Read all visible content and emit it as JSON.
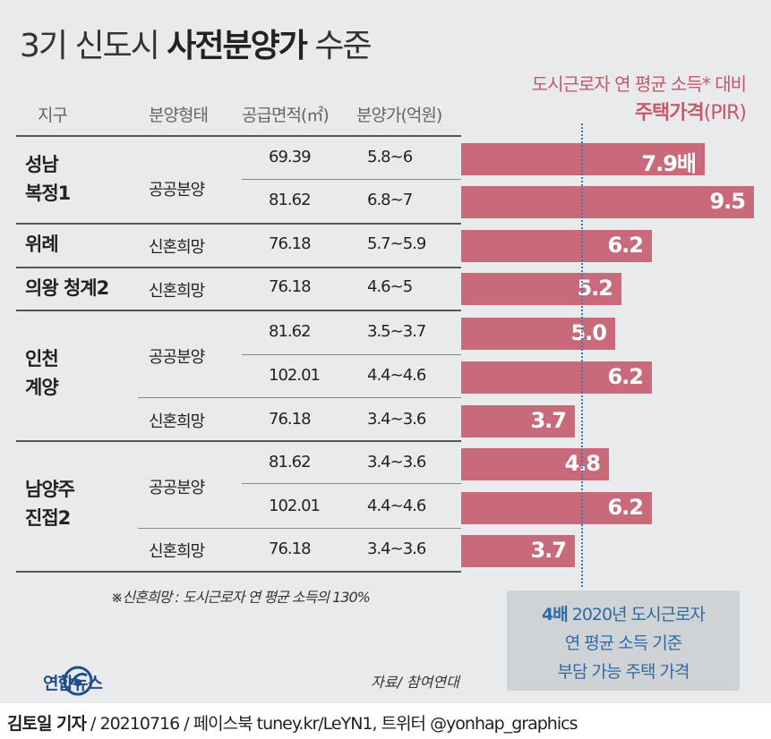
{
  "title_light_1": "3기 신도시 ",
  "title_bold": "사전분양가",
  "title_light_2": " 수준",
  "pir_header": {
    "line1": "도시근로자 연 평균 소득* 대비",
    "line2_bold": "주택가격",
    "line2_suffix": "(PIR)"
  },
  "table_headers": {
    "district": "지구",
    "type": "분양형태",
    "area": "공급면적(㎡)",
    "price": "분양가(억원)"
  },
  "groups": [
    {
      "region_line1": "성남",
      "region_line2": "복정1"
    },
    {
      "region_line1": "위례",
      "region_line2": ""
    },
    {
      "region_line1": "의왕 청계2",
      "region_line2": ""
    },
    {
      "region_line1": "인천",
      "region_line2": "계양"
    },
    {
      "region_line1": "남양주",
      "region_line2": "진접2"
    }
  ],
  "type_labels": {
    "public": "공공분양",
    "newlywed": "신혼희망"
  },
  "chart_data": {
    "type": "bar",
    "title": "3기 신도시 사전분양가 수준",
    "orientation": "horizontal",
    "value_unit_first": "배",
    "rows": [
      {
        "region": "성남 복정1",
        "type": "공공분양",
        "area": "69.39",
        "price": "5.8~6",
        "pir": 7.9,
        "pir_label": "7.9배"
      },
      {
        "region": "성남 복정1",
        "type": "공공분양",
        "area": "81.62",
        "price": "6.8~7",
        "pir": 9.5,
        "pir_label": "9.5"
      },
      {
        "region": "위례",
        "type": "신혼희망",
        "area": "76.18",
        "price": "5.7~5.9",
        "pir": 6.2,
        "pir_label": "6.2"
      },
      {
        "region": "의왕 청계2",
        "type": "신혼희망",
        "area": "76.18",
        "price": "4.6~5",
        "pir": 5.2,
        "pir_label": "5.2"
      },
      {
        "region": "인천 계양",
        "type": "공공분양",
        "area": "81.62",
        "price": "3.5~3.7",
        "pir": 5.0,
        "pir_label": "5.0"
      },
      {
        "region": "인천 계양",
        "type": "공공분양",
        "area": "102.01",
        "price": "4.4~4.6",
        "pir": 6.2,
        "pir_label": "6.2"
      },
      {
        "region": "인천 계양",
        "type": "신혼희망",
        "area": "76.18",
        "price": "3.4~3.6",
        "pir": 3.7,
        "pir_label": "3.7"
      },
      {
        "region": "남양주 진접2",
        "type": "공공분양",
        "area": "81.62",
        "price": "3.4~3.6",
        "pir": 4.8,
        "pir_label": "4.8"
      },
      {
        "region": "남양주 진접2",
        "type": "공공분양",
        "area": "102.01",
        "price": "4.4~4.6",
        "pir": 6.2,
        "pir_label": "6.2"
      },
      {
        "region": "남양주 진접2",
        "type": "신혼희망",
        "area": "76.18",
        "price": "3.4~3.6",
        "pir": 3.7,
        "pir_label": "3.7"
      }
    ],
    "reference": {
      "value": 4,
      "label_bold": "4배",
      "line1": " 2020년 도시근로자",
      "line2": "연 평균 소득 기준",
      "line3": "부담 가능 주택 가격"
    }
  },
  "footnote": "※신혼희망 : 도시근로자 연 평균 소득의 130%",
  "source": "자료/ 참여연대",
  "logo_text": "연합뉴스",
  "credit": {
    "bold": "김토일 기자",
    "rest": " / 20210716 / 페이스북 tuney.kr/LeYN1, 트위터 @yonhap_graphics"
  },
  "colors": {
    "bar": "#c96a7a",
    "accent_text": "#c9576a",
    "reference_line": "#3b7bb4",
    "background": "#e8eaeb"
  }
}
